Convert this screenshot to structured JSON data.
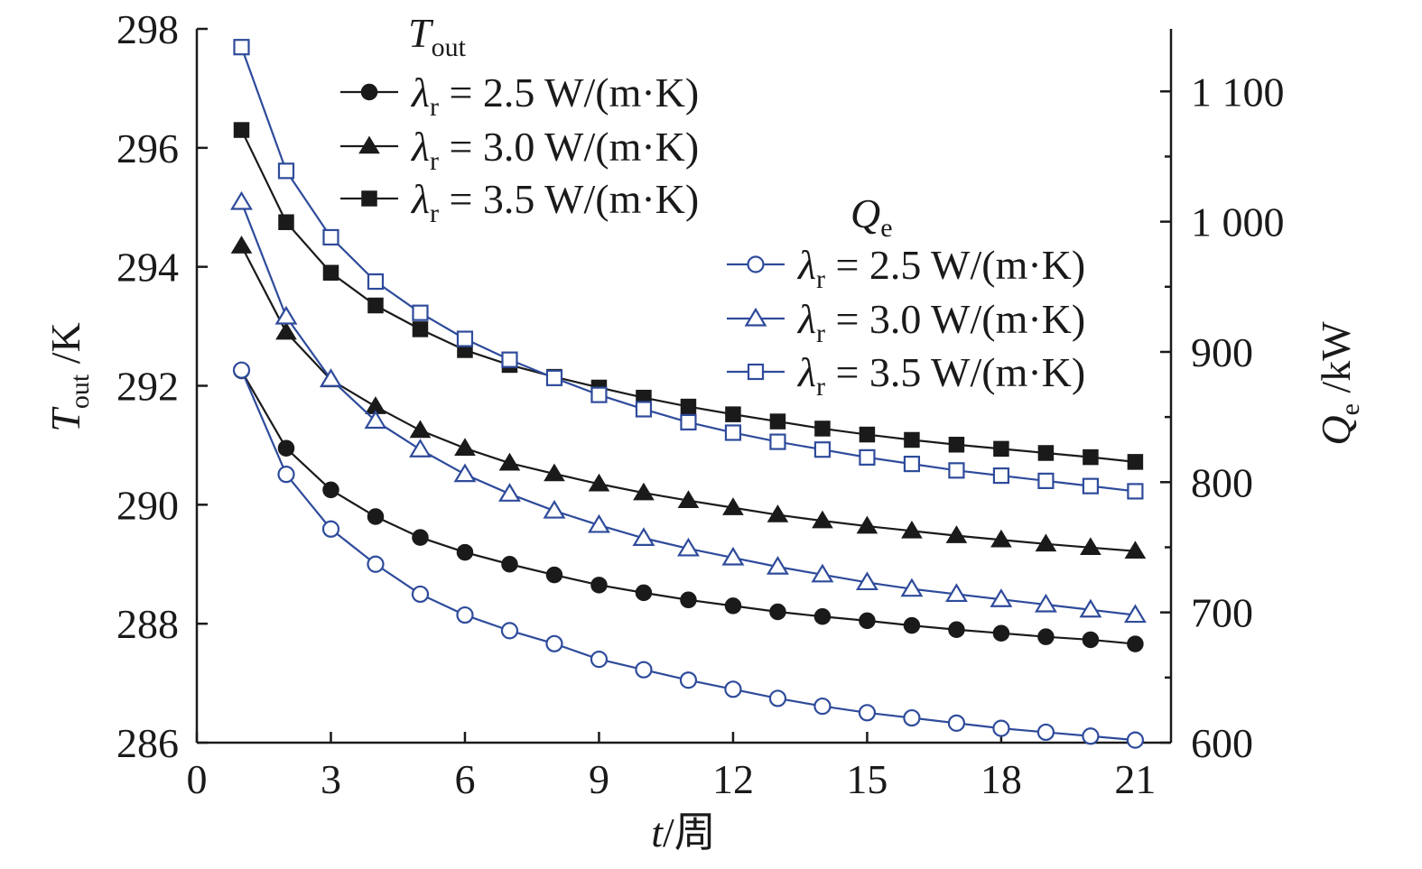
{
  "chart_data": {
    "type": "line",
    "xlabel": {
      "var": "t",
      "unit": "/周"
    },
    "ylabel_left": {
      "var": "T",
      "sub": "out",
      "unit": " /K"
    },
    "ylabel_right": {
      "var": "Q",
      "sub": "e",
      "unit": " /kW"
    },
    "xlim": [
      0,
      21.8
    ],
    "xticks": [
      0,
      3,
      6,
      9,
      12,
      15,
      18,
      21
    ],
    "ylim_left": [
      286,
      298
    ],
    "yticks_left": [
      286,
      288,
      290,
      292,
      294,
      296,
      298
    ],
    "ylim_right": [
      600,
      1148
    ],
    "yticks_right": [
      600,
      700,
      800,
      900,
      1000,
      1100
    ],
    "ytick_labels_right": [
      "600",
      "700",
      "800",
      "900",
      "1 000",
      "1 100"
    ],
    "yticks_right_minor": [
      650,
      750,
      850,
      950,
      1050
    ],
    "grid": false,
    "x": [
      1,
      2,
      3,
      4,
      5,
      6,
      7,
      8,
      9,
      10,
      11,
      12,
      13,
      14,
      15,
      16,
      17,
      18,
      19,
      20,
      21
    ],
    "legend_groups": [
      {
        "title_var": "T",
        "title_sub": "out",
        "position": "top-center"
      },
      {
        "title_var": "Q",
        "title_sub": "e",
        "position": "center-right"
      }
    ],
    "series": [
      {
        "name": "λr = 2.5 W/(m·K)",
        "label_pre": "λ",
        "label_sub": "r",
        "label_post": " = 2.5 W/(m·K)",
        "group": 0,
        "axis": "left",
        "marker": "circle",
        "filled": true,
        "color": "#1a1a1a",
        "values": [
          292.25,
          290.95,
          290.25,
          289.8,
          289.45,
          289.2,
          289.0,
          288.82,
          288.65,
          288.52,
          288.4,
          288.3,
          288.2,
          288.12,
          288.05,
          287.97,
          287.9,
          287.84,
          287.78,
          287.73,
          287.66
        ]
      },
      {
        "name": "λr = 3.0 W/(m·K)",
        "label_pre": "λ",
        "label_sub": "r",
        "label_post": " = 3.0 W/(m·K)",
        "group": 0,
        "axis": "left",
        "marker": "triangle",
        "filled": true,
        "color": "#1a1a1a",
        "values": [
          294.35,
          292.9,
          292.1,
          291.65,
          291.25,
          290.95,
          290.7,
          290.52,
          290.35,
          290.2,
          290.07,
          289.95,
          289.83,
          289.73,
          289.64,
          289.56,
          289.48,
          289.41,
          289.34,
          289.28,
          289.22
        ]
      },
      {
        "name": "λr = 3.5 W/(m·K)",
        "label_pre": "λ",
        "label_sub": "r",
        "label_post": " = 3.5 W/(m·K)",
        "group": 0,
        "axis": "left",
        "marker": "square",
        "filled": true,
        "color": "#1a1a1a",
        "values": [
          296.3,
          294.75,
          293.9,
          293.35,
          292.95,
          292.6,
          292.35,
          292.15,
          291.97,
          291.8,
          291.65,
          291.52,
          291.4,
          291.28,
          291.18,
          291.09,
          291.01,
          290.94,
          290.87,
          290.8,
          290.72
        ]
      },
      {
        "name": "λr = 2.5 W/(m·K)",
        "label_pre": "λ",
        "label_sub": "r",
        "label_post": " = 2.5 W/(m·K)",
        "group": 1,
        "axis": "right",
        "marker": "circle",
        "filled": false,
        "color": "#2e4b9b",
        "values": [
          886,
          806,
          764,
          737,
          714,
          698,
          686,
          676,
          664,
          656,
          648,
          641,
          634,
          628,
          623,
          619,
          615,
          611,
          608,
          605,
          602
        ]
      },
      {
        "name": "λr = 3.0 W/(m·K)",
        "label_pre": "λ",
        "label_sub": "r",
        "label_post": " = 3.0 W/(m·K)",
        "group": 1,
        "axis": "right",
        "marker": "triangle",
        "filled": false,
        "color": "#2e4b9b",
        "values": [
          1015,
          927,
          879,
          847,
          825,
          806,
          791,
          778,
          767,
          757,
          749,
          742,
          735,
          729,
          723,
          718,
          714,
          710,
          706,
          702,
          698
        ]
      },
      {
        "name": "λr = 3.5 W/(m·K)",
        "label_pre": "λ",
        "label_sub": "r",
        "label_post": " = 3.5 W/(m·K)",
        "group": 1,
        "axis": "right",
        "marker": "square",
        "filled": false,
        "color": "#2e4b9b",
        "values": [
          1134,
          1039,
          988,
          954,
          930,
          910,
          894,
          880,
          867,
          856,
          846,
          838,
          831,
          825,
          819,
          814,
          809,
          805,
          801,
          797,
          793
        ]
      }
    ]
  }
}
